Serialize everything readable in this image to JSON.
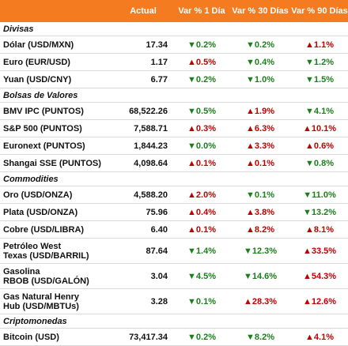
{
  "header": {
    "columns": [
      "Actual",
      "Var % 1 Día",
      "Var % 30 Días",
      "Var % 90 Días"
    ]
  },
  "sections": [
    {
      "title": "Divisas",
      "rows": [
        {
          "name": [
            "Dólar (USD/MXN)"
          ],
          "cells": [
            "17.34",
            "▼0.2%",
            "▼0.2%",
            "▲1.1%"
          ]
        },
        {
          "name": [
            "Euro (EUR/USD)"
          ],
          "cells": [
            "1.17",
            "▲0.5%",
            "▼0.4%",
            "▼1.2%"
          ]
        },
        {
          "name": [
            "Yuan (USD/CNY)"
          ],
          "cells": [
            "6.77",
            "▼0.2%",
            "▼1.0%",
            "▼1.5%"
          ]
        }
      ]
    },
    {
      "title": "Bolsas de Valores",
      "rows": [
        {
          "name": [
            "BMV IPC (PUNTOS)"
          ],
          "cells": [
            "68,522.26",
            "▼0.5%",
            "▲1.9%",
            "▼4.1%"
          ]
        },
        {
          "name": [
            "S&P 500 (PUNTOS)"
          ],
          "cells": [
            "7,588.71",
            "▲0.3%",
            "▲6.3%",
            "▲10.1%"
          ]
        },
        {
          "name": [
            "Euronext (PUNTOS)"
          ],
          "cells": [
            "1,844.23",
            "▼0.0%",
            "▲3.3%",
            "▲0.6%"
          ]
        },
        {
          "name": [
            "Shangai SSE (PUNTOS)"
          ],
          "cells": [
            "4,098.64",
            "▲0.1%",
            "▲0.1%",
            "▼0.8%"
          ]
        }
      ]
    },
    {
      "title": "Commodities",
      "rows": [
        {
          "name": [
            "Oro (USD/ONZA)"
          ],
          "cells": [
            "4,588.20",
            "▲2.0%",
            "▼0.1%",
            "▼11.0%"
          ]
        },
        {
          "name": [
            "Plata (USD/ONZA)"
          ],
          "cells": [
            "75.96",
            "▲0.4%",
            "▲3.8%",
            "▼13.2%"
          ]
        },
        {
          "name": [
            "Cobre (USD/LIBRA)"
          ],
          "cells": [
            "6.40",
            "▲0.1%",
            "▲8.2%",
            "▲8.1%"
          ]
        },
        {
          "name": [
            "Petróleo West",
            "Texas (USD/BARRIL)"
          ],
          "cells": [
            "87.64",
            "▼1.4%",
            "▼12.3%",
            "▲33.5%"
          ]
        },
        {
          "name": [
            "Gasolina",
            "RBOB (USD/GALÓN)"
          ],
          "cells": [
            "3.04",
            "▼4.5%",
            "▼14.6%",
            "▲54.3%"
          ]
        },
        {
          "name": [
            "Gas Natural Henry",
            "Hub (USD/MBTUs)"
          ],
          "cells": [
            "3.28",
            "▼0.1%",
            "▲28.3%",
            "▲12.6%"
          ]
        }
      ]
    },
    {
      "title": "Criptomonedas",
      "rows": [
        {
          "name": [
            "Bitcoin (USD)"
          ],
          "cells": [
            "73,417.34",
            "▼0.2%",
            "▼8.2%",
            "▲4.1%"
          ]
        }
      ]
    }
  ]
}
